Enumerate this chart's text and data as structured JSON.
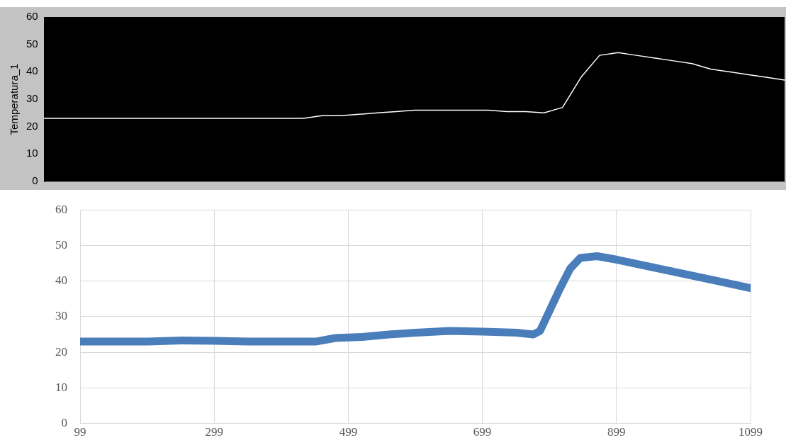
{
  "chart_data": [
    {
      "type": "line",
      "ylabel": "Temperatura_1",
      "categories": [
        null,
        null,
        null,
        null,
        null,
        null,
        null,
        null,
        null,
        null,
        null,
        null,
        null,
        null,
        null,
        null,
        null,
        null,
        null,
        null,
        null,
        null,
        null,
        null,
        null,
        null,
        null,
        null,
        null,
        null,
        null,
        null,
        null,
        null,
        null,
        null,
        null,
        null,
        null,
        null,
        null
      ],
      "series": [
        {
          "color": "#ffffff",
          "values": [
            23,
            23,
            23,
            23,
            23,
            23,
            23,
            23,
            23,
            23,
            23,
            23,
            23,
            23,
            23,
            24,
            24,
            24.5,
            25,
            25.5,
            26,
            26,
            26,
            26,
            26,
            25.5,
            25.5,
            25,
            27,
            38,
            46,
            47,
            46,
            45,
            44,
            43,
            41,
            40,
            39,
            38,
            37
          ]
        }
      ],
      "ylim": [
        0,
        60
      ],
      "yticks": [
        0,
        10,
        20,
        30,
        40,
        50,
        60
      ],
      "grid": false,
      "legend": false,
      "tick_labels": "y",
      "marker": "none",
      "line_style": "solid"
    },
    {
      "type": "line",
      "x": [
        99,
        150,
        200,
        250,
        300,
        350,
        400,
        450,
        480,
        520,
        560,
        600,
        650,
        700,
        750,
        775,
        785,
        800,
        815,
        830,
        845,
        870,
        900,
        950,
        1000,
        1050,
        1099
      ],
      "series": [
        {
          "color": "#4a7ebb",
          "values": [
            23,
            23,
            23,
            23.3,
            23.2,
            23,
            23,
            23,
            24,
            24.3,
            25,
            25.5,
            26,
            25.8,
            25.5,
            25,
            26,
            32,
            38,
            43.5,
            46.5,
            47,
            46,
            44,
            42,
            40,
            38
          ]
        }
      ],
      "xlim": [
        99,
        1099
      ],
      "xticks": [
        99,
        299,
        499,
        699,
        899,
        1099
      ],
      "ylim": [
        0,
        60
      ],
      "yticks": [
        0,
        10,
        20,
        30,
        40,
        50,
        60
      ],
      "grid": true,
      "legend": false,
      "marker": "none",
      "line_style": "solid"
    }
  ]
}
